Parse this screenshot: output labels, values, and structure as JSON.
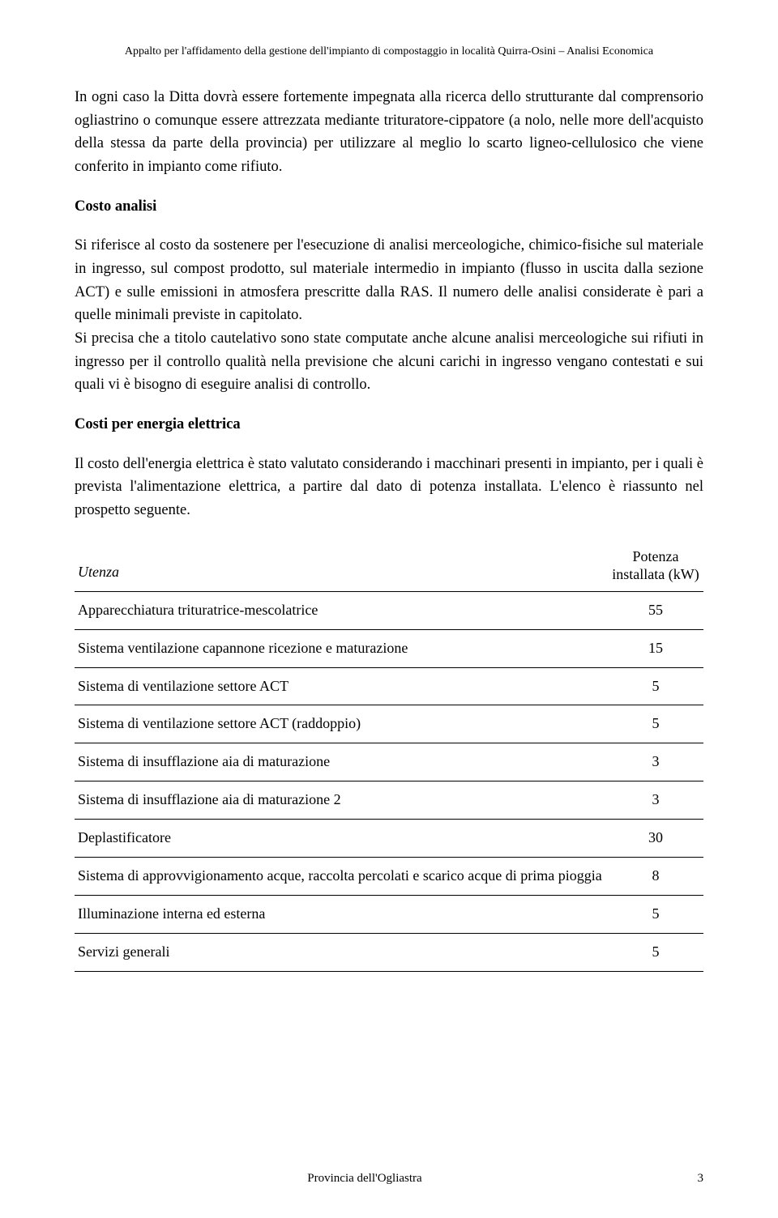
{
  "header": {
    "running_title": "Appalto per l'affidamento della gestione dell'impianto di compostaggio in località Quirra-Osini – Analisi Economica"
  },
  "paragraphs": {
    "p1": "In ogni caso la Ditta dovrà essere fortemente impegnata alla ricerca dello strutturante dal comprensorio ogliastrino o comunque essere attrezzata mediante trituratore-cippatore (a nolo, nelle more dell'acquisto della stessa da parte della provincia) per utilizzare al meglio lo scarto ligneo-cellulosico che viene conferito in impianto come rifiuto."
  },
  "sections": {
    "costo_analisi": {
      "title": "Costo analisi",
      "p1": "Si riferisce al costo da sostenere per l'esecuzione di analisi merceologiche, chimico-fisiche sul materiale in ingresso, sul compost prodotto, sul materiale intermedio in impianto (flusso in uscita dalla sezione ACT) e sulle emissioni in atmosfera prescritte dalla RAS. Il numero delle analisi considerate è pari a quelle minimali previste in capitolato.",
      "p2": "Si precisa che a titolo cautelativo sono state computate anche alcune analisi merceologiche sui rifiuti in ingresso per il controllo qualità nella previsione che alcuni carichi in ingresso vengano contestati e sui quali vi è bisogno di eseguire analisi di controllo."
    },
    "energia": {
      "title": "Costi per energia elettrica",
      "p1": "Il costo dell'energia elettrica è stato valutato considerando i macchinari presenti in impianto, per i quali è prevista l'alimentazione elettrica, a partire dal dato di potenza installata. L'elenco è riassunto nel prospetto seguente."
    }
  },
  "table": {
    "header_utenza": "Utenza",
    "header_value": "Potenza installata (kW)",
    "rows": [
      {
        "label": "Apparecchiatura trituratrice-mescolatrice",
        "value": "55"
      },
      {
        "label": "Sistema ventilazione capannone ricezione e maturazione",
        "value": "15"
      },
      {
        "label": "Sistema di ventilazione settore ACT",
        "value": "5"
      },
      {
        "label": "Sistema di ventilazione settore ACT (raddoppio)",
        "value": "5"
      },
      {
        "label": "Sistema di insufflazione  aia di maturazione",
        "value": "3"
      },
      {
        "label": "Sistema di insufflazione  aia di maturazione 2",
        "value": "3"
      },
      {
        "label": "Deplastificatore",
        "value": "30"
      },
      {
        "label": "Sistema di approvvigionamento acque, raccolta percolati e scarico acque di prima pioggia",
        "value": "8"
      },
      {
        "label": "Illuminazione interna ed esterna",
        "value": "5"
      },
      {
        "label": "Servizi generali",
        "value": "5"
      }
    ]
  },
  "footer": {
    "organization": "Provincia dell'Ogliastra",
    "page_number": "3"
  }
}
